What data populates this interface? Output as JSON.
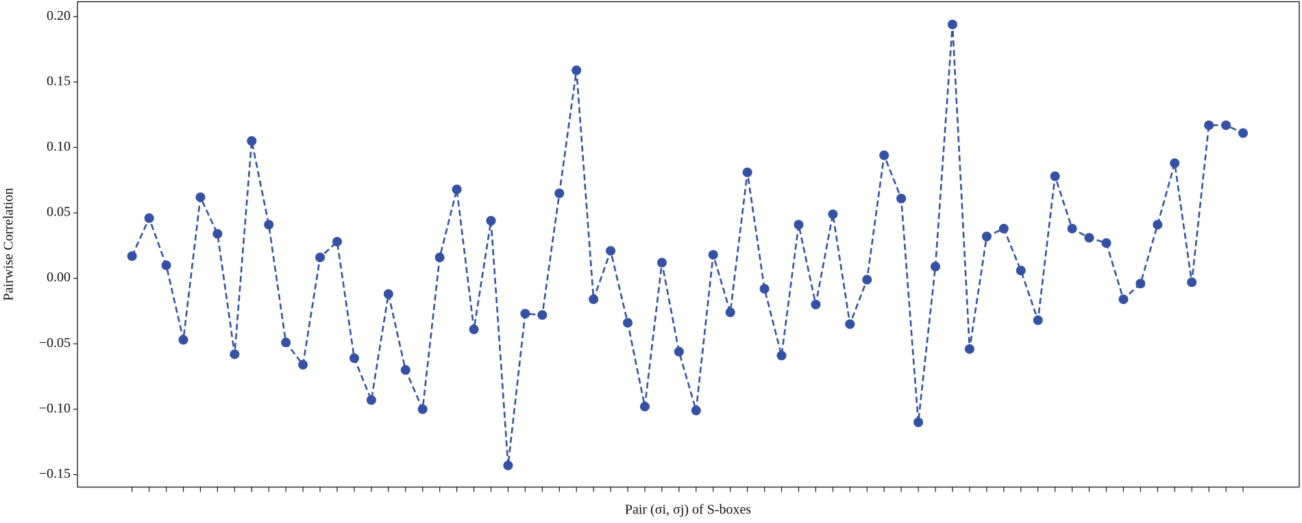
{
  "chart_data": {
    "type": "line",
    "xlabel": "Pair (σi, σj) of S-boxes",
    "ylabel": "Pairwise Correlation",
    "categories": [
      null,
      null,
      null,
      null,
      null,
      null,
      null,
      null,
      null,
      null,
      null,
      null,
      null,
      null,
      null,
      null,
      null,
      null,
      null,
      null,
      null,
      null,
      null,
      null,
      null,
      null,
      null,
      null,
      null,
      null,
      null,
      null,
      null,
      null,
      null,
      null,
      null,
      null,
      null,
      null,
      null,
      null,
      null,
      null,
      null,
      null,
      null,
      null,
      null,
      null,
      null,
      null,
      null,
      null,
      null,
      null,
      null,
      null,
      null,
      null,
      null,
      null,
      null,
      null,
      null,
      null
    ],
    "series": [
      {
        "color": "#3451a3",
        "values": [
          0.017,
          0.046,
          0.01,
          -0.047,
          0.062,
          0.034,
          -0.058,
          0.105,
          0.041,
          -0.049,
          -0.066,
          0.016,
          0.028,
          -0.061,
          -0.093,
          -0.012,
          -0.07,
          -0.1,
          0.016,
          0.068,
          -0.039,
          0.044,
          -0.143,
          -0.027,
          -0.028,
          0.065,
          0.159,
          -0.016,
          0.021,
          -0.034,
          -0.098,
          0.012,
          -0.056,
          -0.101,
          0.018,
          -0.026,
          0.081,
          -0.008,
          -0.059,
          0.041,
          -0.02,
          0.049,
          -0.035,
          -0.001,
          0.094,
          0.061,
          -0.11,
          0.009,
          0.194,
          -0.054,
          0.032,
          0.038,
          0.006,
          -0.032,
          0.078,
          0.038,
          0.031,
          0.027,
          -0.016,
          -0.004,
          0.041,
          0.088,
          -0.003,
          0.117,
          0.117,
          0.111
        ]
      }
    ],
    "ylim": [
      -0.1595,
      0.2114
    ],
    "yticks": [
      {
        "value": -0.15,
        "label": "−0.15"
      },
      {
        "value": -0.1,
        "label": "−0.10"
      },
      {
        "value": -0.05,
        "label": "−0.05"
      },
      {
        "value": 0.0,
        "label": "0.00"
      },
      {
        "value": 0.05,
        "label": "0.05"
      },
      {
        "value": 0.1,
        "label": "0.10"
      },
      {
        "value": 0.15,
        "label": "0.15"
      },
      {
        "value": 0.2,
        "label": "0.20"
      }
    ],
    "line_style": "dashed",
    "markers": true
  }
}
